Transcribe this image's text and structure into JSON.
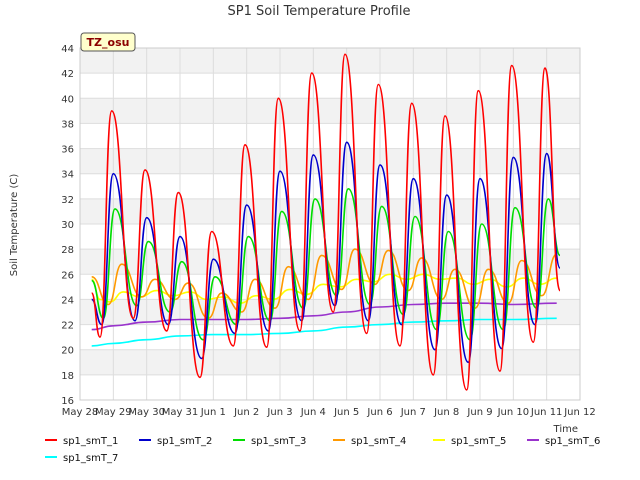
{
  "chart_data": {
    "type": "line",
    "title": "SP1 Soil Temperature Profile",
    "xlabel": "Time",
    "ylabel": "Soil Temperature (C)",
    "ylim": [
      16,
      44
    ],
    "yticks": [
      16,
      18,
      20,
      22,
      24,
      26,
      28,
      30,
      32,
      34,
      36,
      38,
      40,
      42,
      44
    ],
    "xlim": [
      0,
      15
    ],
    "xtick_labels": [
      "May 28",
      "May 29",
      "May 30",
      "May 31",
      "Jun 1",
      "Jun 2",
      "Jun 3",
      "Jun 4",
      "Jun 5",
      "Jun 6",
      "Jun 7",
      "Jun 8",
      "Jun 9",
      "Jun 10",
      "Jun 11",
      "Jun 12"
    ],
    "badge": "TZ_osu",
    "x_units": "days since May 28 00:00",
    "series": [
      {
        "name": "sp1_smT_1",
        "color": "#ff0000",
        "x": [
          0.35,
          0.6,
          0.95,
          1.6,
          1.95,
          2.6,
          2.95,
          3.6,
          3.95,
          4.6,
          4.95,
          5.6,
          5.95,
          6.6,
          6.95,
          7.6,
          7.95,
          8.6,
          8.95,
          9.6,
          9.95,
          10.6,
          10.95,
          11.6,
          11.95,
          12.6,
          12.95,
          13.6,
          13.95,
          14.4
        ],
        "y": [
          24.5,
          21.0,
          39.0,
          22.5,
          34.3,
          21.5,
          32.5,
          17.8,
          29.4,
          20.3,
          36.3,
          20.2,
          40.0,
          21.5,
          42.0,
          23.0,
          43.5,
          21.3,
          41.1,
          20.3,
          39.6,
          18.0,
          38.6,
          16.8,
          40.6,
          18.3,
          42.6,
          20.6,
          42.4,
          24.7
        ]
      },
      {
        "name": "sp1_smT_2",
        "color": "#0000cc",
        "x": [
          0.35,
          0.65,
          1.0,
          1.65,
          2.0,
          2.65,
          3.0,
          3.65,
          4.0,
          4.65,
          5.0,
          5.65,
          6.0,
          6.65,
          7.0,
          7.65,
          8.0,
          8.65,
          9.0,
          9.65,
          10.0,
          10.65,
          11.0,
          11.65,
          12.0,
          12.65,
          13.0,
          13.65,
          14.0,
          14.4
        ],
        "y": [
          24.0,
          22.0,
          34.0,
          22.3,
          30.5,
          22.0,
          29.0,
          19.3,
          27.2,
          21.3,
          31.5,
          21.5,
          34.2,
          22.3,
          35.5,
          23.5,
          36.5,
          22.3,
          34.7,
          22.0,
          33.6,
          20.0,
          32.3,
          19.0,
          33.6,
          20.1,
          35.3,
          22.0,
          35.6,
          26.5
        ]
      },
      {
        "name": "sp1_smT_3",
        "color": "#00dd00",
        "x": [
          0.35,
          0.7,
          1.05,
          1.7,
          2.05,
          2.7,
          3.05,
          3.7,
          4.05,
          4.7,
          5.05,
          5.7,
          6.05,
          6.7,
          7.05,
          7.7,
          8.05,
          8.7,
          9.05,
          9.7,
          10.05,
          10.7,
          11.05,
          11.7,
          12.05,
          12.7,
          13.05,
          13.7,
          14.05,
          14.4
        ],
        "y": [
          25.5,
          22.5,
          31.2,
          23.5,
          28.6,
          23.0,
          27.0,
          20.8,
          25.8,
          22.0,
          29.0,
          22.3,
          31.0,
          23.3,
          32.0,
          24.3,
          32.8,
          23.6,
          31.4,
          22.8,
          30.6,
          21.6,
          29.4,
          20.8,
          30.0,
          21.6,
          31.3,
          23.3,
          32.0,
          27.5
        ]
      },
      {
        "name": "sp1_smT_4",
        "color": "#ff9900",
        "x": [
          0.35,
          0.85,
          1.25,
          1.85,
          2.25,
          2.85,
          3.25,
          3.85,
          4.25,
          4.85,
          5.25,
          5.85,
          6.25,
          6.85,
          7.25,
          7.85,
          8.25,
          8.85,
          9.25,
          9.85,
          10.25,
          10.85,
          11.25,
          11.85,
          12.25,
          12.85,
          13.25,
          13.85,
          14.3
        ],
        "y": [
          25.8,
          23.6,
          26.8,
          24.2,
          25.6,
          24.0,
          25.3,
          22.5,
          24.5,
          23.0,
          25.6,
          23.3,
          26.6,
          24.0,
          27.5,
          24.8,
          28.0,
          25.2,
          27.9,
          24.7,
          27.3,
          24.0,
          26.4,
          23.3,
          26.4,
          23.7,
          27.1,
          24.3,
          27.6
        ]
      },
      {
        "name": "sp1_smT_5",
        "color": "#ffff00",
        "x": [
          0.35,
          0.6,
          0.9,
          1.3,
          1.8,
          2.3,
          2.8,
          3.3,
          3.8,
          4.3,
          4.8,
          5.3,
          5.8,
          6.3,
          6.8,
          7.3,
          7.8,
          8.3,
          8.8,
          9.3,
          9.8,
          10.3,
          10.8,
          11.3,
          11.8,
          12.3,
          12.8,
          13.3,
          13.8,
          14.3
        ],
        "y": [
          25.6,
          24.0,
          23.8,
          24.6,
          24.2,
          24.7,
          24.3,
          24.6,
          24.0,
          24.2,
          23.7,
          24.3,
          24.0,
          24.8,
          24.4,
          25.2,
          25.0,
          25.6,
          25.4,
          26.0,
          25.6,
          26.0,
          25.6,
          25.7,
          25.2,
          25.6,
          25.0,
          25.7,
          25.2,
          25.7
        ]
      },
      {
        "name": "sp1_smT_6",
        "color": "#9933cc",
        "x": [
          0.35,
          1.0,
          2.0,
          3.0,
          4.0,
          5.0,
          6.0,
          7.0,
          8.0,
          9.0,
          10.0,
          11.0,
          12.0,
          13.0,
          14.3
        ],
        "y": [
          21.6,
          21.9,
          22.2,
          22.4,
          22.4,
          22.4,
          22.5,
          22.7,
          23.0,
          23.4,
          23.6,
          23.7,
          23.7,
          23.6,
          23.7
        ]
      },
      {
        "name": "sp1_smT_7",
        "color": "#00ffff",
        "x": [
          0.35,
          1.0,
          2.0,
          3.0,
          4.0,
          5.0,
          6.0,
          7.0,
          8.0,
          9.0,
          10.0,
          11.0,
          12.0,
          13.0,
          14.3
        ],
        "y": [
          20.3,
          20.5,
          20.8,
          21.1,
          21.2,
          21.2,
          21.3,
          21.5,
          21.8,
          22.0,
          22.2,
          22.3,
          22.4,
          22.4,
          22.5
        ]
      }
    ]
  }
}
